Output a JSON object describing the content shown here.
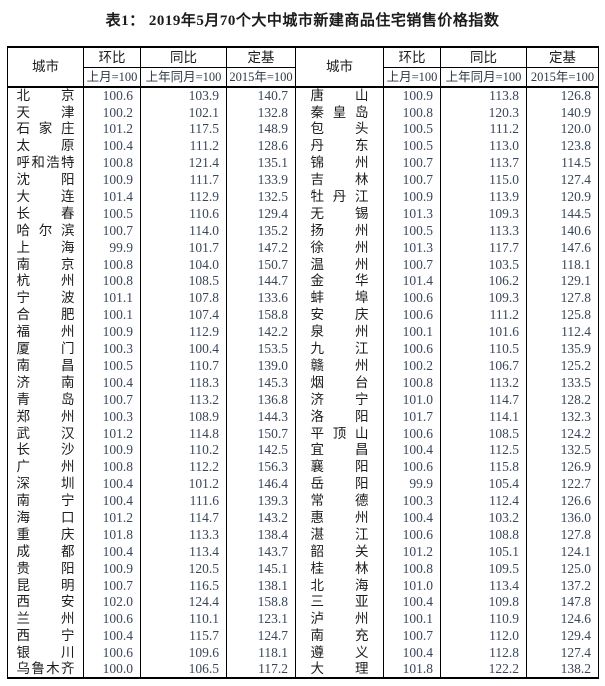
{
  "title": "表1： 2019年5月70个大中城市新建商品住宅销售价格指数",
  "colors": {
    "border": "#000000",
    "title_text": "#1b1b1b",
    "city_text": "#1c1c1c",
    "number_text": "#39465a",
    "background": "#ffffff"
  },
  "table": {
    "header": {
      "city": "城市",
      "mom": "环比",
      "mom_base": "上月=100",
      "yoy": "同比",
      "yoy_base": "上年同月=100",
      "fixed": "定基",
      "fixed_base": "2015年=100"
    },
    "left_rows": [
      {
        "city": "北京",
        "mom": "100.6",
        "yoy": "103.9",
        "fixed": "140.7"
      },
      {
        "city": "天津",
        "mom": "100.2",
        "yoy": "102.1",
        "fixed": "132.8"
      },
      {
        "city": "石家庄",
        "mom": "101.2",
        "yoy": "117.5",
        "fixed": "148.9"
      },
      {
        "city": "太原",
        "mom": "100.4",
        "yoy": "111.2",
        "fixed": "128.6"
      },
      {
        "city": "呼和浩特",
        "mom": "100.8",
        "yoy": "121.4",
        "fixed": "135.1"
      },
      {
        "city": "沈阳",
        "mom": "100.9",
        "yoy": "111.7",
        "fixed": "133.9"
      },
      {
        "city": "大连",
        "mom": "101.4",
        "yoy": "112.9",
        "fixed": "132.5"
      },
      {
        "city": "长春",
        "mom": "100.5",
        "yoy": "110.6",
        "fixed": "129.4"
      },
      {
        "city": "哈尔滨",
        "mom": "100.7",
        "yoy": "114.0",
        "fixed": "135.2"
      },
      {
        "city": "上海",
        "mom": "99.9",
        "yoy": "101.7",
        "fixed": "147.2"
      },
      {
        "city": "南京",
        "mom": "100.8",
        "yoy": "104.0",
        "fixed": "150.7"
      },
      {
        "city": "杭州",
        "mom": "100.8",
        "yoy": "108.5",
        "fixed": "144.7"
      },
      {
        "city": "宁波",
        "mom": "101.1",
        "yoy": "107.8",
        "fixed": "133.6"
      },
      {
        "city": "合肥",
        "mom": "100.1",
        "yoy": "107.4",
        "fixed": "158.8"
      },
      {
        "city": "福州",
        "mom": "100.9",
        "yoy": "112.9",
        "fixed": "142.2"
      },
      {
        "city": "厦门",
        "mom": "100.3",
        "yoy": "100.4",
        "fixed": "153.5"
      },
      {
        "city": "南昌",
        "mom": "100.5",
        "yoy": "110.7",
        "fixed": "139.0"
      },
      {
        "city": "济南",
        "mom": "100.4",
        "yoy": "118.3",
        "fixed": "145.3"
      },
      {
        "city": "青岛",
        "mom": "100.7",
        "yoy": "113.2",
        "fixed": "136.8"
      },
      {
        "city": "郑州",
        "mom": "100.3",
        "yoy": "108.9",
        "fixed": "144.3"
      },
      {
        "city": "武汉",
        "mom": "101.2",
        "yoy": "114.8",
        "fixed": "150.7"
      },
      {
        "city": "长沙",
        "mom": "100.9",
        "yoy": "110.2",
        "fixed": "142.5"
      },
      {
        "city": "广州",
        "mom": "100.8",
        "yoy": "112.2",
        "fixed": "156.3"
      },
      {
        "city": "深圳",
        "mom": "100.4",
        "yoy": "101.2",
        "fixed": "146.4"
      },
      {
        "city": "南宁",
        "mom": "100.4",
        "yoy": "111.6",
        "fixed": "139.3"
      },
      {
        "city": "海口",
        "mom": "101.2",
        "yoy": "114.7",
        "fixed": "143.2"
      },
      {
        "city": "重庆",
        "mom": "101.8",
        "yoy": "113.3",
        "fixed": "138.4"
      },
      {
        "city": "成都",
        "mom": "100.4",
        "yoy": "113.4",
        "fixed": "143.7"
      },
      {
        "city": "贵阳",
        "mom": "100.9",
        "yoy": "120.5",
        "fixed": "145.1"
      },
      {
        "city": "昆明",
        "mom": "100.7",
        "yoy": "116.5",
        "fixed": "138.1"
      },
      {
        "city": "西安",
        "mom": "102.0",
        "yoy": "124.4",
        "fixed": "158.8"
      },
      {
        "city": "兰州",
        "mom": "100.6",
        "yoy": "110.1",
        "fixed": "123.1"
      },
      {
        "city": "西宁",
        "mom": "100.4",
        "yoy": "115.7",
        "fixed": "124.7"
      },
      {
        "city": "银川",
        "mom": "100.6",
        "yoy": "109.6",
        "fixed": "118.1"
      },
      {
        "city": "乌鲁木齐",
        "mom": "100.0",
        "yoy": "106.5",
        "fixed": "117.2"
      }
    ],
    "right_rows": [
      {
        "city": "唐山",
        "mom": "100.9",
        "yoy": "113.8",
        "fixed": "126.8"
      },
      {
        "city": "秦皇岛",
        "mom": "100.8",
        "yoy": "120.3",
        "fixed": "140.9"
      },
      {
        "city": "包头",
        "mom": "100.5",
        "yoy": "111.2",
        "fixed": "120.0"
      },
      {
        "city": "丹东",
        "mom": "100.5",
        "yoy": "113.0",
        "fixed": "123.8"
      },
      {
        "city": "锦州",
        "mom": "100.7",
        "yoy": "113.7",
        "fixed": "114.5"
      },
      {
        "city": "吉林",
        "mom": "100.7",
        "yoy": "115.0",
        "fixed": "127.4"
      },
      {
        "city": "牡丹江",
        "mom": "100.9",
        "yoy": "113.9",
        "fixed": "120.9"
      },
      {
        "city": "无锡",
        "mom": "101.3",
        "yoy": "109.3",
        "fixed": "144.5"
      },
      {
        "city": "扬州",
        "mom": "100.5",
        "yoy": "113.3",
        "fixed": "140.6"
      },
      {
        "city": "徐州",
        "mom": "101.3",
        "yoy": "117.7",
        "fixed": "147.6"
      },
      {
        "city": "温州",
        "mom": "100.7",
        "yoy": "103.5",
        "fixed": "118.1"
      },
      {
        "city": "金华",
        "mom": "101.4",
        "yoy": "106.2",
        "fixed": "129.1"
      },
      {
        "city": "蚌埠",
        "mom": "100.6",
        "yoy": "109.3",
        "fixed": "127.8"
      },
      {
        "city": "安庆",
        "mom": "100.6",
        "yoy": "111.2",
        "fixed": "125.8"
      },
      {
        "city": "泉州",
        "mom": "100.1",
        "yoy": "101.6",
        "fixed": "112.4"
      },
      {
        "city": "九江",
        "mom": "100.6",
        "yoy": "110.5",
        "fixed": "135.9"
      },
      {
        "city": "赣州",
        "mom": "100.2",
        "yoy": "106.7",
        "fixed": "125.2"
      },
      {
        "city": "烟台",
        "mom": "100.8",
        "yoy": "113.2",
        "fixed": "133.5"
      },
      {
        "city": "济宁",
        "mom": "101.0",
        "yoy": "114.7",
        "fixed": "128.2"
      },
      {
        "city": "洛阳",
        "mom": "101.7",
        "yoy": "114.1",
        "fixed": "132.3"
      },
      {
        "city": "平顶山",
        "mom": "100.6",
        "yoy": "108.5",
        "fixed": "124.2"
      },
      {
        "city": "宜昌",
        "mom": "100.4",
        "yoy": "112.5",
        "fixed": "132.5"
      },
      {
        "city": "襄阳",
        "mom": "100.6",
        "yoy": "115.8",
        "fixed": "126.9"
      },
      {
        "city": "岳阳",
        "mom": "99.9",
        "yoy": "105.4",
        "fixed": "122.7"
      },
      {
        "city": "常德",
        "mom": "100.3",
        "yoy": "112.4",
        "fixed": "126.6"
      },
      {
        "city": "惠州",
        "mom": "100.4",
        "yoy": "103.2",
        "fixed": "136.0"
      },
      {
        "city": "湛江",
        "mom": "100.6",
        "yoy": "108.8",
        "fixed": "127.8"
      },
      {
        "city": "韶关",
        "mom": "101.2",
        "yoy": "105.1",
        "fixed": "124.1"
      },
      {
        "city": "桂林",
        "mom": "100.8",
        "yoy": "109.5",
        "fixed": "125.0"
      },
      {
        "city": "北海",
        "mom": "101.0",
        "yoy": "113.4",
        "fixed": "137.2"
      },
      {
        "city": "三亚",
        "mom": "100.4",
        "yoy": "109.8",
        "fixed": "147.8"
      },
      {
        "city": "泸州",
        "mom": "100.1",
        "yoy": "110.9",
        "fixed": "124.6"
      },
      {
        "city": "南充",
        "mom": "100.7",
        "yoy": "112.0",
        "fixed": "129.4"
      },
      {
        "city": "遵义",
        "mom": "100.4",
        "yoy": "112.8",
        "fixed": "127.4"
      },
      {
        "city": "大理",
        "mom": "101.8",
        "yoy": "122.2",
        "fixed": "138.2"
      }
    ]
  }
}
